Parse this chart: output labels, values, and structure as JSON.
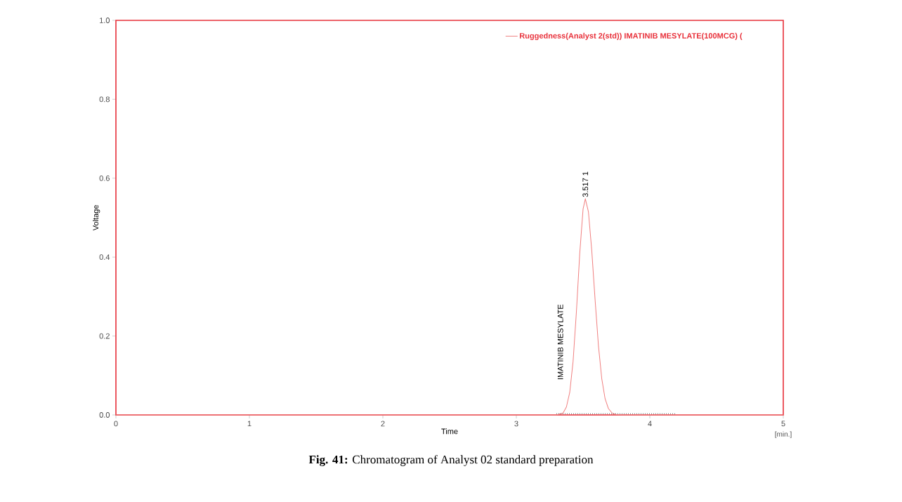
{
  "chart_data": {
    "type": "line",
    "xlabel": "Time",
    "ylabel": "Voltage",
    "xlim": [
      0,
      5
    ],
    "ylim": [
      0,
      1
    ],
    "xticks": [
      0,
      1,
      2,
      3,
      4,
      5
    ],
    "yticks": [
      {
        "value": 0,
        "label": "0.0"
      },
      {
        "value": 0.2,
        "label": "0.2"
      },
      {
        "value": 0.4,
        "label": "0.4"
      },
      {
        "value": 0.6,
        "label": "0.6"
      },
      {
        "value": 0.8,
        "label": "0.8"
      },
      {
        "value": 1,
        "label": "1.0"
      }
    ],
    "legend": "top right",
    "marker": "none",
    "grid": false,
    "series": [
      {
        "name": "Ruggedness(Analyst 2(std)) IMATINIB MESYLATE(100MCG) (",
        "color": "#f08080",
        "line_style": "solid",
        "x": [
          0,
          1,
          2,
          3,
          3.3,
          3.35,
          3.375,
          3.4,
          3.425,
          3.45,
          3.475,
          3.5,
          3.517,
          3.54,
          3.565,
          3.59,
          3.615,
          3.64,
          3.665,
          3.69,
          3.72,
          3.75,
          3.8,
          4,
          4.5,
          5
        ],
        "values": [
          0,
          0,
          0,
          0,
          0,
          0.005,
          0.02,
          0.057,
          0.135,
          0.261,
          0.409,
          0.522,
          0.548,
          0.515,
          0.417,
          0.292,
          0.176,
          0.092,
          0.041,
          0.016,
          0.004,
          0.001,
          0,
          0,
          0,
          0
        ]
      },
      {
        "type": "line",
        "color": "#555555",
        "line_style": "dotted",
        "x": [
          3.3,
          4.2
        ],
        "values": [
          0.003,
          0.003
        ]
      }
    ],
    "annotations": [
      {
        "text": "3.517  1",
        "x": 3.517,
        "y": 0.548
      },
      "IMATINIB MESYLATE",
      "[min.]",
      "**Fig. 41:** Chromatogram of Analyst 02 standard preparation"
    ]
  }
}
